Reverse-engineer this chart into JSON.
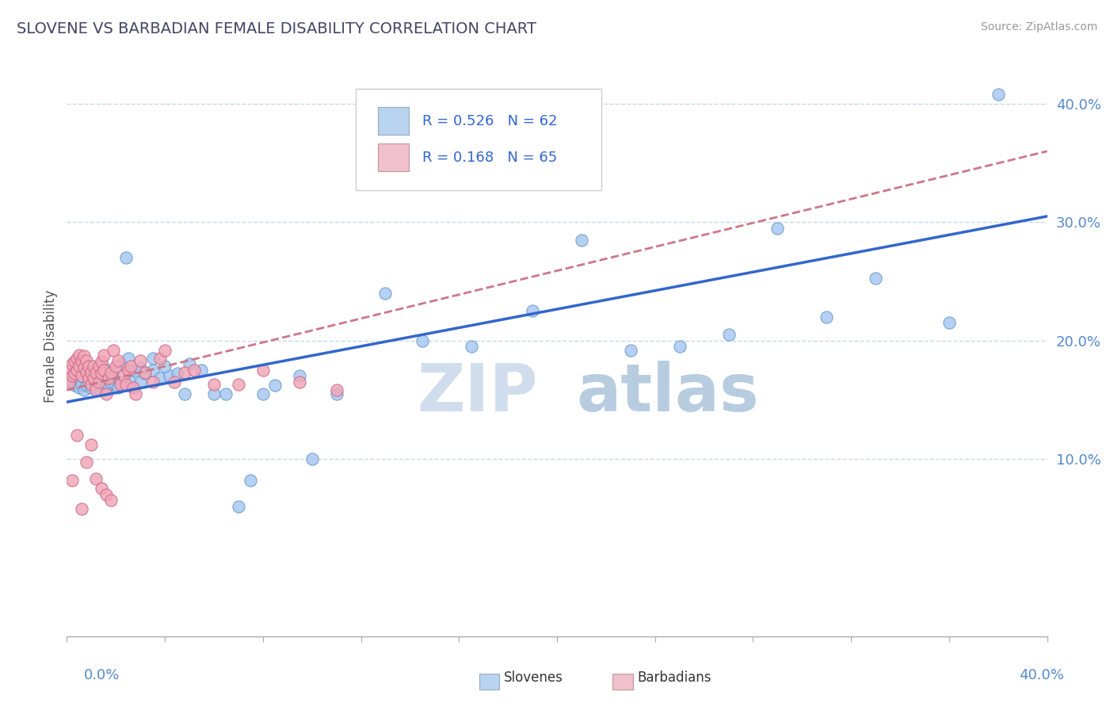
{
  "title": "SLOVENE VS BARBADIAN FEMALE DISABILITY CORRELATION CHART",
  "source": "Source: ZipAtlas.com",
  "ylabel": "Female Disability",
  "watermark_zip": "ZIP",
  "watermark_atlas": "atlas",
  "slovene_R": 0.526,
  "slovene_N": 62,
  "barbadian_R": 0.168,
  "barbadian_N": 65,
  "slovene_color_fill": "#a8c8f0",
  "slovene_color_edge": "#6699cc",
  "barbadian_color_fill": "#f0a8b8",
  "barbadian_color_edge": "#cc6688",
  "trend_slovene_color": "#3366cc",
  "trend_barbadian_color": "#cc7788",
  "background_color": "#ffffff",
  "grid_color": "#c8d8e8",
  "legend_box_color_slovene": "#b8d4f0",
  "legend_box_color_barbadian": "#f0c0cc",
  "xlim": [
    0.0,
    0.4
  ],
  "ylim": [
    -0.05,
    0.44
  ],
  "ytick_vals": [
    0.1,
    0.2,
    0.3,
    0.4
  ],
  "ytick_labels": [
    "10.0%",
    "20.0%",
    "30.0%",
    "40.0%"
  ],
  "slovene_scatter_x": [
    0.002,
    0.003,
    0.004,
    0.005,
    0.006,
    0.007,
    0.008,
    0.009,
    0.01,
    0.011,
    0.012,
    0.013,
    0.014,
    0.015,
    0.016,
    0.017,
    0.018,
    0.019,
    0.02,
    0.021,
    0.022,
    0.024,
    0.026,
    0.028,
    0.03,
    0.032,
    0.035,
    0.038,
    0.042,
    0.048,
    0.055,
    0.065,
    0.075,
    0.085,
    0.095,
    0.11,
    0.13,
    0.145,
    0.165,
    0.19,
    0.21,
    0.23,
    0.25,
    0.27,
    0.29,
    0.31,
    0.33,
    0.36,
    0.38,
    0.015,
    0.018,
    0.022,
    0.025,
    0.03,
    0.035,
    0.04,
    0.045,
    0.05,
    0.06,
    0.07,
    0.08,
    0.1
  ],
  "slovene_scatter_y": [
    0.165,
    0.162,
    0.168,
    0.16,
    0.163,
    0.158,
    0.162,
    0.165,
    0.16,
    0.163,
    0.16,
    0.165,
    0.162,
    0.167,
    0.16,
    0.163,
    0.165,
    0.168,
    0.163,
    0.16,
    0.165,
    0.27,
    0.165,
    0.175,
    0.165,
    0.172,
    0.175,
    0.168,
    0.17,
    0.155,
    0.175,
    0.155,
    0.082,
    0.162,
    0.17,
    0.155,
    0.24,
    0.2,
    0.195,
    0.225,
    0.285,
    0.192,
    0.195,
    0.205,
    0.295,
    0.22,
    0.253,
    0.215,
    0.408,
    0.177,
    0.172,
    0.18,
    0.185,
    0.177,
    0.185,
    0.178,
    0.172,
    0.18,
    0.155,
    0.06,
    0.155,
    0.1
  ],
  "barbadian_scatter_x": [
    0.001,
    0.001,
    0.002,
    0.002,
    0.003,
    0.003,
    0.004,
    0.004,
    0.005,
    0.005,
    0.006,
    0.006,
    0.007,
    0.007,
    0.008,
    0.008,
    0.009,
    0.009,
    0.01,
    0.01,
    0.011,
    0.011,
    0.012,
    0.012,
    0.013,
    0.013,
    0.014,
    0.014,
    0.015,
    0.015,
    0.016,
    0.017,
    0.018,
    0.019,
    0.02,
    0.021,
    0.022,
    0.023,
    0.024,
    0.025,
    0.026,
    0.027,
    0.028,
    0.03,
    0.032,
    0.035,
    0.038,
    0.04,
    0.044,
    0.048,
    0.052,
    0.06,
    0.07,
    0.08,
    0.095,
    0.11,
    0.002,
    0.004,
    0.006,
    0.008,
    0.01,
    0.012,
    0.014,
    0.016,
    0.018
  ],
  "barbadian_scatter_y": [
    0.165,
    0.175,
    0.17,
    0.18,
    0.182,
    0.172,
    0.185,
    0.175,
    0.188,
    0.178,
    0.183,
    0.17,
    0.177,
    0.187,
    0.173,
    0.183,
    0.168,
    0.178,
    0.163,
    0.173,
    0.178,
    0.168,
    0.158,
    0.173,
    0.178,
    0.165,
    0.182,
    0.172,
    0.188,
    0.175,
    0.155,
    0.168,
    0.173,
    0.192,
    0.178,
    0.183,
    0.163,
    0.17,
    0.163,
    0.175,
    0.178,
    0.16,
    0.155,
    0.183,
    0.173,
    0.165,
    0.185,
    0.192,
    0.165,
    0.173,
    0.175,
    0.163,
    0.163,
    0.175,
    0.165,
    0.158,
    0.082,
    0.12,
    0.058,
    0.097,
    0.112,
    0.083,
    0.075,
    0.07,
    0.065
  ],
  "trend_slovene_x0": 0.0,
  "trend_slovene_x1": 0.4,
  "trend_slovene_y0": 0.148,
  "trend_slovene_y1": 0.305,
  "trend_barbadian_x0": 0.0,
  "trend_barbadian_x1": 0.4,
  "trend_barbadian_y0": 0.158,
  "trend_barbadian_y1": 0.36
}
